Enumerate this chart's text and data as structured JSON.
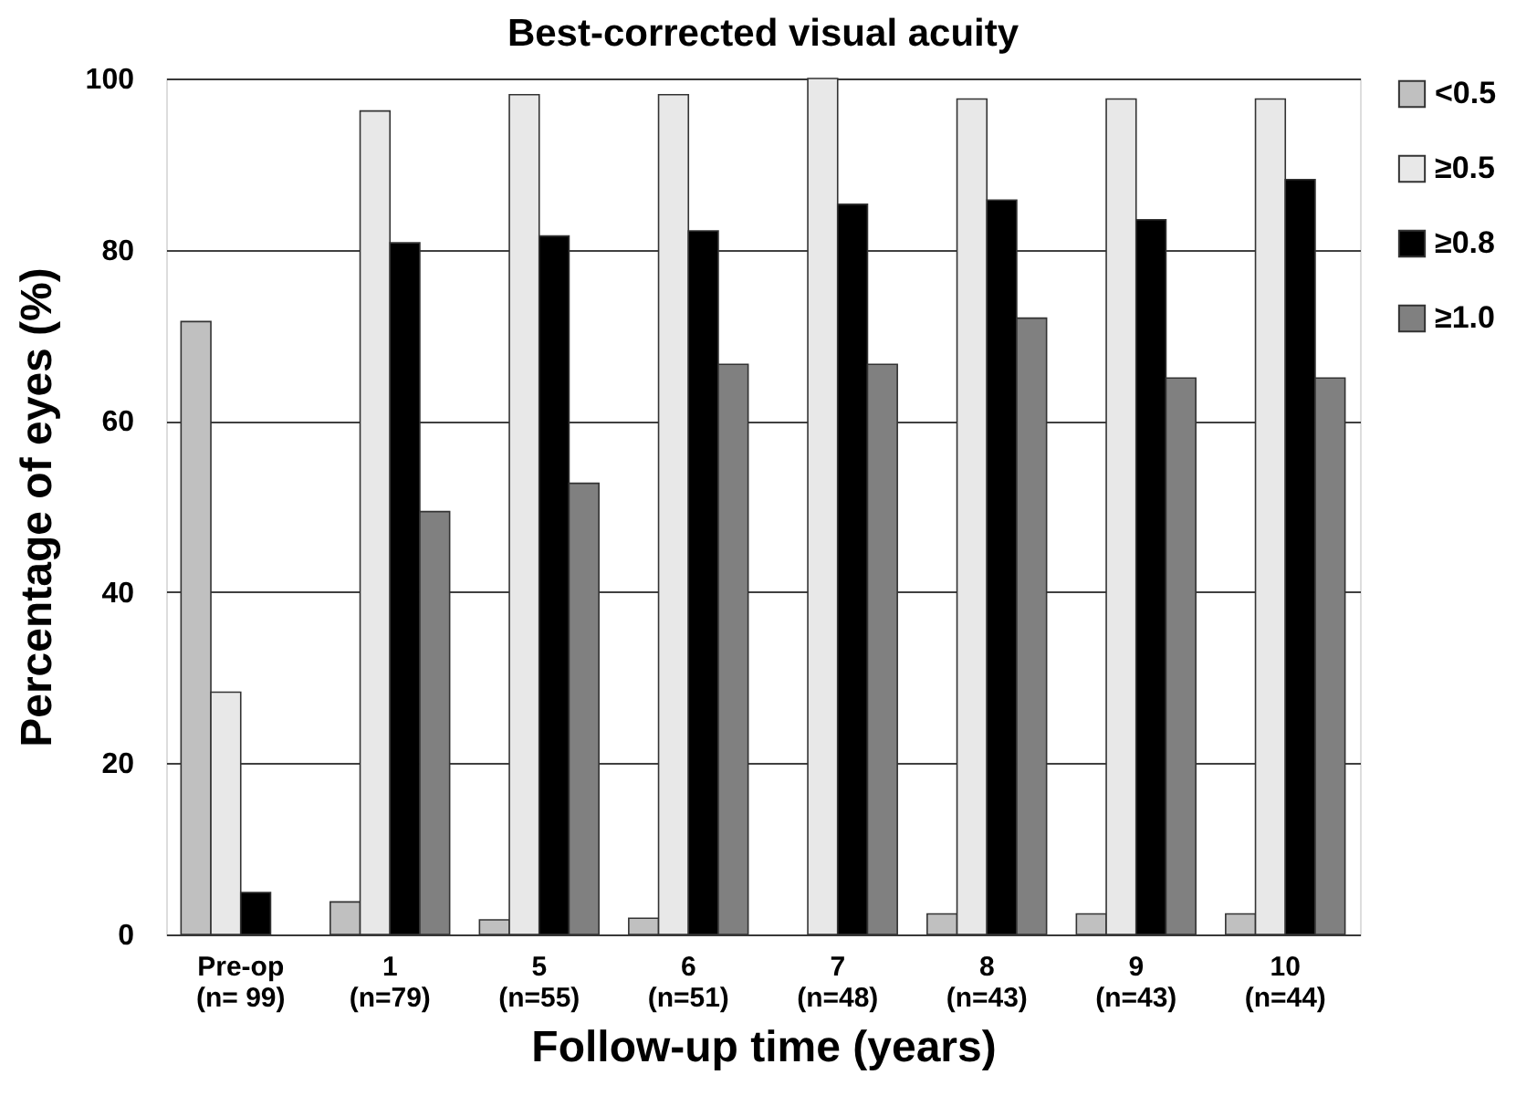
{
  "chart_data": {
    "type": "bar",
    "title": "Best-corrected visual acuity",
    "xlabel": "Follow-up time (years)",
    "ylabel": "Percentage of eyes (%)",
    "categories": [
      "Pre-op\n(n= 99)",
      "1\n(n=79)",
      "5\n(n=55)",
      "6\n(n=51)",
      "7\n(n=48)",
      "8\n(n=43)",
      "9\n(n=43)",
      "10\n(n=44)"
    ],
    "series": [
      {
        "name": "<0.5",
        "color": "#c0c0c0",
        "values": [
          71.6,
          3.8,
          1.7,
          1.9,
          null,
          2.4,
          2.4,
          2.4
        ]
      },
      {
        "name": "≥0.5",
        "color": "#e8e8e8",
        "values": [
          28.3,
          96.2,
          98.1,
          98.1,
          100,
          97.6,
          97.6,
          97.6
        ]
      },
      {
        "name": "≥0.8",
        "color": "#000000",
        "values": [
          4.9,
          80.8,
          81.6,
          82.2,
          85.3,
          85.8,
          83.5,
          88.2
        ]
      },
      {
        "name": "≥1.0",
        "color": "#808080",
        "values": [
          null,
          49.4,
          52.7,
          66.6,
          66.6,
          72.0,
          65.0,
          65.0
        ]
      }
    ],
    "ylim": [
      0,
      100
    ],
    "yticks": [
      0,
      20,
      40,
      60,
      80,
      100
    ],
    "grid": "y",
    "legend": "top right"
  }
}
